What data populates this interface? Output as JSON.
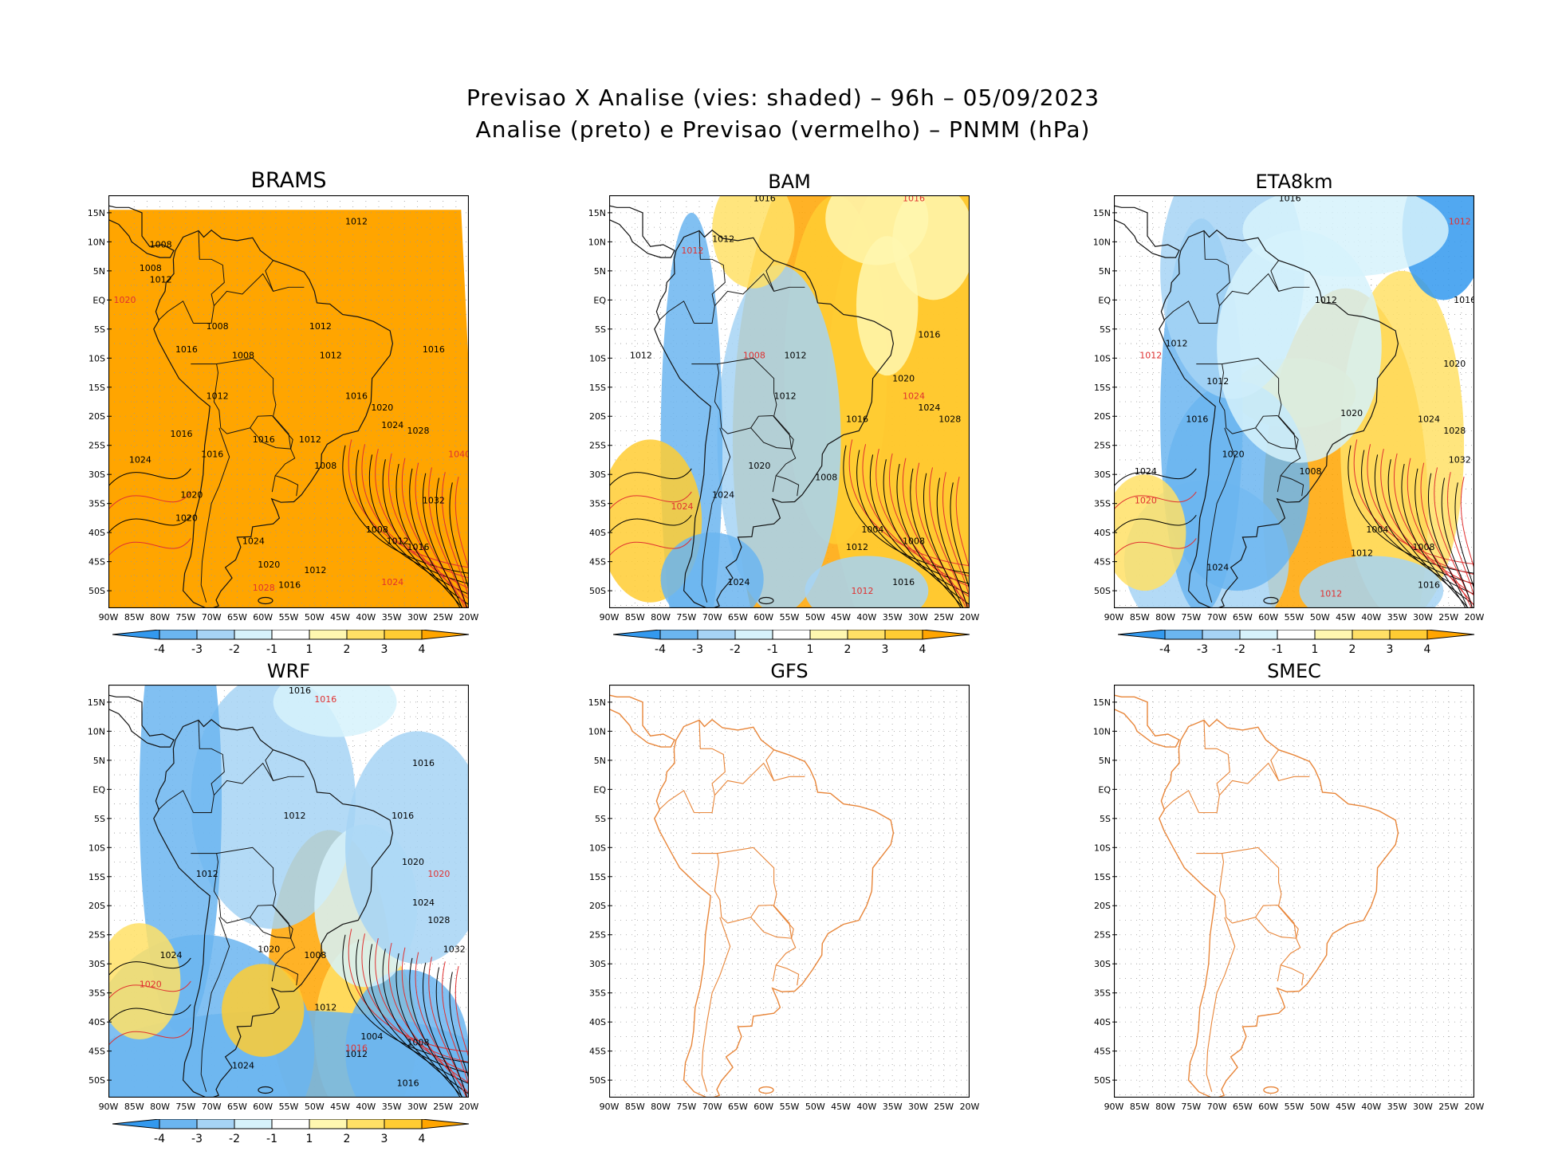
{
  "figure": {
    "title_line1": "Previsao X Analise (vies: shaded) – 96h – 05/09/2023",
    "title_line2": "Analise (preto) e Previsao (vermelho) – PNMM (hPa)"
  },
  "axes": {
    "lat_labels": [
      "15N",
      "10N",
      "5N",
      "EQ",
      "5S",
      "10S",
      "15S",
      "20S",
      "25S",
      "30S",
      "35S",
      "40S",
      "45S",
      "50S"
    ],
    "lon_labels": [
      "90W",
      "85W",
      "80W",
      "75W",
      "70W",
      "65W",
      "60W",
      "55W",
      "50W",
      "45W",
      "40W",
      "35W",
      "30W",
      "25W",
      "20W"
    ]
  },
  "colorbar": {
    "tick_labels": [
      "-4",
      "-3",
      "-2",
      "-1",
      "1",
      "2",
      "3",
      "4"
    ],
    "colors": [
      "#3399ee",
      "#6bb5f0",
      "#a6d3f5",
      "#d6f2fb",
      "#ffffff",
      "#fff7b0",
      "#ffe066",
      "#ffcc33",
      "#ffa500"
    ]
  },
  "line_colors": {
    "analysis": "#000000",
    "forecast": "#e03030",
    "bias_fill_high": "#ffa500",
    "coast_only": "#e8863a"
  },
  "panels": [
    {
      "id": "brams",
      "name": "BRAMS",
      "fill": "full",
      "labels": [
        {
          "t": "1012",
          "c": "k",
          "lon": -44,
          "lat": 13
        },
        {
          "t": "1008",
          "c": "k",
          "lon": -82,
          "lat": 9
        },
        {
          "t": "1008",
          "c": "k",
          "lon": -84,
          "lat": 5
        },
        {
          "t": "1012",
          "c": "k",
          "lon": -82,
          "lat": 3
        },
        {
          "t": "1020",
          "c": "r",
          "lon": -89,
          "lat": -0.5
        },
        {
          "t": "1008",
          "c": "k",
          "lon": -71,
          "lat": -5
        },
        {
          "t": "1008",
          "c": "k",
          "lon": -66,
          "lat": -10
        },
        {
          "t": "1012",
          "c": "k",
          "lon": -51,
          "lat": -5
        },
        {
          "t": "1016",
          "c": "k",
          "lon": -29,
          "lat": -9
        },
        {
          "t": "1012",
          "c": "k",
          "lon": -49,
          "lat": -10
        },
        {
          "t": "1016",
          "c": "k",
          "lon": -77,
          "lat": -9
        },
        {
          "t": "1012",
          "c": "k",
          "lon": -71,
          "lat": -17
        },
        {
          "t": "1016",
          "c": "k",
          "lon": -44,
          "lat": -17
        },
        {
          "t": "1020",
          "c": "k",
          "lon": -39,
          "lat": -19
        },
        {
          "t": "1024",
          "c": "k",
          "lon": -37,
          "lat": -22
        },
        {
          "t": "1028",
          "c": "k",
          "lon": -32,
          "lat": -23
        },
        {
          "t": "1016",
          "c": "k",
          "lon": -78,
          "lat": -23.5
        },
        {
          "t": "1016",
          "c": "k",
          "lon": -62,
          "lat": -24.5
        },
        {
          "t": "1012",
          "c": "k",
          "lon": -53,
          "lat": -24.5
        },
        {
          "t": "1016",
          "c": "k",
          "lon": -72,
          "lat": -27
        },
        {
          "t": "1024",
          "c": "k",
          "lon": -86,
          "lat": -28
        },
        {
          "t": "1008",
          "c": "k",
          "lon": -50,
          "lat": -29
        },
        {
          "t": "1032",
          "c": "k",
          "lon": -29,
          "lat": -35
        },
        {
          "t": "1020",
          "c": "k",
          "lon": -76,
          "lat": -34
        },
        {
          "t": "1020",
          "c": "k",
          "lon": -77,
          "lat": -38
        },
        {
          "t": "1008",
          "c": "k",
          "lon": -40,
          "lat": -40
        },
        {
          "t": "1012",
          "c": "k",
          "lon": -36,
          "lat": -42
        },
        {
          "t": "1016",
          "c": "k",
          "lon": -32,
          "lat": -43
        },
        {
          "t": "1024",
          "c": "k",
          "lon": -64,
          "lat": -42
        },
        {
          "t": "1020",
          "c": "k",
          "lon": -61,
          "lat": -46
        },
        {
          "t": "1012",
          "c": "k",
          "lon": -52,
          "lat": -47
        },
        {
          "t": "1016",
          "c": "k",
          "lon": -57,
          "lat": -49.5
        },
        {
          "t": "1028",
          "c": "r",
          "lon": -62,
          "lat": -50
        },
        {
          "t": "1024",
          "c": "r",
          "lon": -37,
          "lat": -49
        },
        {
          "t": "1040",
          "c": "r",
          "lon": -24,
          "lat": -27
        }
      ]
    },
    {
      "id": "bam",
      "name": "BAM",
      "fill": "mixed",
      "labels": [
        {
          "t": "1016",
          "c": "k",
          "lon": -62,
          "lat": 17
        },
        {
          "t": "1016",
          "c": "r",
          "lon": -33,
          "lat": 17
        },
        {
          "t": "1012",
          "c": "k",
          "lon": -70,
          "lat": 10
        },
        {
          "t": "1012",
          "c": "r",
          "lon": -76,
          "lat": 8
        },
        {
          "t": "1012",
          "c": "k",
          "lon": -86,
          "lat": -10
        },
        {
          "t": "1008",
          "c": "r",
          "lon": -64,
          "lat": -10
        },
        {
          "t": "1012",
          "c": "k",
          "lon": -56,
          "lat": -10
        },
        {
          "t": "1016",
          "c": "k",
          "lon": -30,
          "lat": -6.5
        },
        {
          "t": "1020",
          "c": "k",
          "lon": -35,
          "lat": -14
        },
        {
          "t": "1024",
          "c": "r",
          "lon": -33,
          "lat": -17
        },
        {
          "t": "1024",
          "c": "k",
          "lon": -30,
          "lat": -19
        },
        {
          "t": "1028",
          "c": "k",
          "lon": -26,
          "lat": -21
        },
        {
          "t": "1012",
          "c": "k",
          "lon": -58,
          "lat": -17
        },
        {
          "t": "1016",
          "c": "k",
          "lon": -44,
          "lat": -21
        },
        {
          "t": "1020",
          "c": "k",
          "lon": -63,
          "lat": -29
        },
        {
          "t": "1008",
          "c": "k",
          "lon": -50,
          "lat": -31
        },
        {
          "t": "1024",
          "c": "k",
          "lon": -70,
          "lat": -34
        },
        {
          "t": "1004",
          "c": "k",
          "lon": -41,
          "lat": -40
        },
        {
          "t": "1012",
          "c": "k",
          "lon": -44,
          "lat": -43
        },
        {
          "t": "1008",
          "c": "k",
          "lon": -33,
          "lat": -42
        },
        {
          "t": "1024",
          "c": "k",
          "lon": -67,
          "lat": -49
        },
        {
          "t": "1016",
          "c": "k",
          "lon": -35,
          "lat": -49
        },
        {
          "t": "1012",
          "c": "r",
          "lon": -43,
          "lat": -50.5
        },
        {
          "t": "1024",
          "c": "r",
          "lon": -78,
          "lat": -36
        }
      ]
    },
    {
      "id": "eta8km",
      "name": "ETA8km",
      "fill": "mixed",
      "labels": [
        {
          "t": "1016",
          "c": "k",
          "lon": -58,
          "lat": 17
        },
        {
          "t": "1012",
          "c": "r",
          "lon": -25,
          "lat": 13
        },
        {
          "t": "1016",
          "c": "k",
          "lon": -24,
          "lat": -0.5
        },
        {
          "t": "1012",
          "c": "k",
          "lon": -51,
          "lat": -0.5
        },
        {
          "t": "1012",
          "c": "k",
          "lon": -80,
          "lat": -8
        },
        {
          "t": "1012",
          "c": "r",
          "lon": -85,
          "lat": -10
        },
        {
          "t": "1012",
          "c": "k",
          "lon": -72,
          "lat": -14.5
        },
        {
          "t": "1020",
          "c": "k",
          "lon": -46,
          "lat": -20
        },
        {
          "t": "1020",
          "c": "k",
          "lon": -26,
          "lat": -11.5
        },
        {
          "t": "1024",
          "c": "k",
          "lon": -31,
          "lat": -21
        },
        {
          "t": "1028",
          "c": "k",
          "lon": -26,
          "lat": -23
        },
        {
          "t": "1032",
          "c": "k",
          "lon": -25,
          "lat": -28
        },
        {
          "t": "1016",
          "c": "k",
          "lon": -76,
          "lat": -21
        },
        {
          "t": "1020",
          "c": "k",
          "lon": -69,
          "lat": -27
        },
        {
          "t": "1024",
          "c": "k",
          "lon": -86,
          "lat": -30
        },
        {
          "t": "1008",
          "c": "k",
          "lon": -54,
          "lat": -30
        },
        {
          "t": "1004",
          "c": "k",
          "lon": -41,
          "lat": -40
        },
        {
          "t": "1008",
          "c": "k",
          "lon": -32,
          "lat": -43
        },
        {
          "t": "1012",
          "c": "k",
          "lon": -44,
          "lat": -44
        },
        {
          "t": "1016",
          "c": "k",
          "lon": -31,
          "lat": -49.5
        },
        {
          "t": "1024",
          "c": "k",
          "lon": -72,
          "lat": -46.5
        },
        {
          "t": "1020",
          "c": "r",
          "lon": -86,
          "lat": -35
        },
        {
          "t": "1012",
          "c": "r",
          "lon": -50,
          "lat": -51
        }
      ]
    },
    {
      "id": "wrf",
      "name": "WRF",
      "fill": "mixed",
      "labels": [
        {
          "t": "1016",
          "c": "k",
          "lon": -55,
          "lat": 16.5
        },
        {
          "t": "1016",
          "c": "r",
          "lon": -50,
          "lat": 15
        },
        {
          "t": "1016",
          "c": "k",
          "lon": -31,
          "lat": 4
        },
        {
          "t": "1012",
          "c": "k",
          "lon": -56,
          "lat": -5
        },
        {
          "t": "1016",
          "c": "k",
          "lon": -35,
          "lat": -5
        },
        {
          "t": "1020",
          "c": "k",
          "lon": -33,
          "lat": -13
        },
        {
          "t": "1020",
          "c": "r",
          "lon": -28,
          "lat": -15
        },
        {
          "t": "1024",
          "c": "k",
          "lon": -31,
          "lat": -20
        },
        {
          "t": "1028",
          "c": "k",
          "lon": -28,
          "lat": -23
        },
        {
          "t": "1032",
          "c": "k",
          "lon": -25,
          "lat": -28
        },
        {
          "t": "1012",
          "c": "k",
          "lon": -73,
          "lat": -15
        },
        {
          "t": "1020",
          "c": "k",
          "lon": -61,
          "lat": -28
        },
        {
          "t": "1024",
          "c": "k",
          "lon": -80,
          "lat": -29
        },
        {
          "t": "1008",
          "c": "k",
          "lon": -52,
          "lat": -29
        },
        {
          "t": "1012",
          "c": "k",
          "lon": -50,
          "lat": -38
        },
        {
          "t": "1004",
          "c": "k",
          "lon": -41,
          "lat": -43
        },
        {
          "t": "1008",
          "c": "k",
          "lon": -32,
          "lat": -44
        },
        {
          "t": "1012",
          "c": "k",
          "lon": -44,
          "lat": -46
        },
        {
          "t": "1024",
          "c": "k",
          "lon": -66,
          "lat": -48
        },
        {
          "t": "1016",
          "c": "k",
          "lon": -34,
          "lat": -51
        },
        {
          "t": "1020",
          "c": "r",
          "lon": -84,
          "lat": -34
        },
        {
          "t": "1016",
          "c": "r",
          "lon": -44,
          "lat": -45
        }
      ]
    },
    {
      "id": "gfs",
      "name": "GFS",
      "fill": "none",
      "labels": []
    },
    {
      "id": "smec",
      "name": "SMEC",
      "fill": "none",
      "labels": []
    }
  ]
}
